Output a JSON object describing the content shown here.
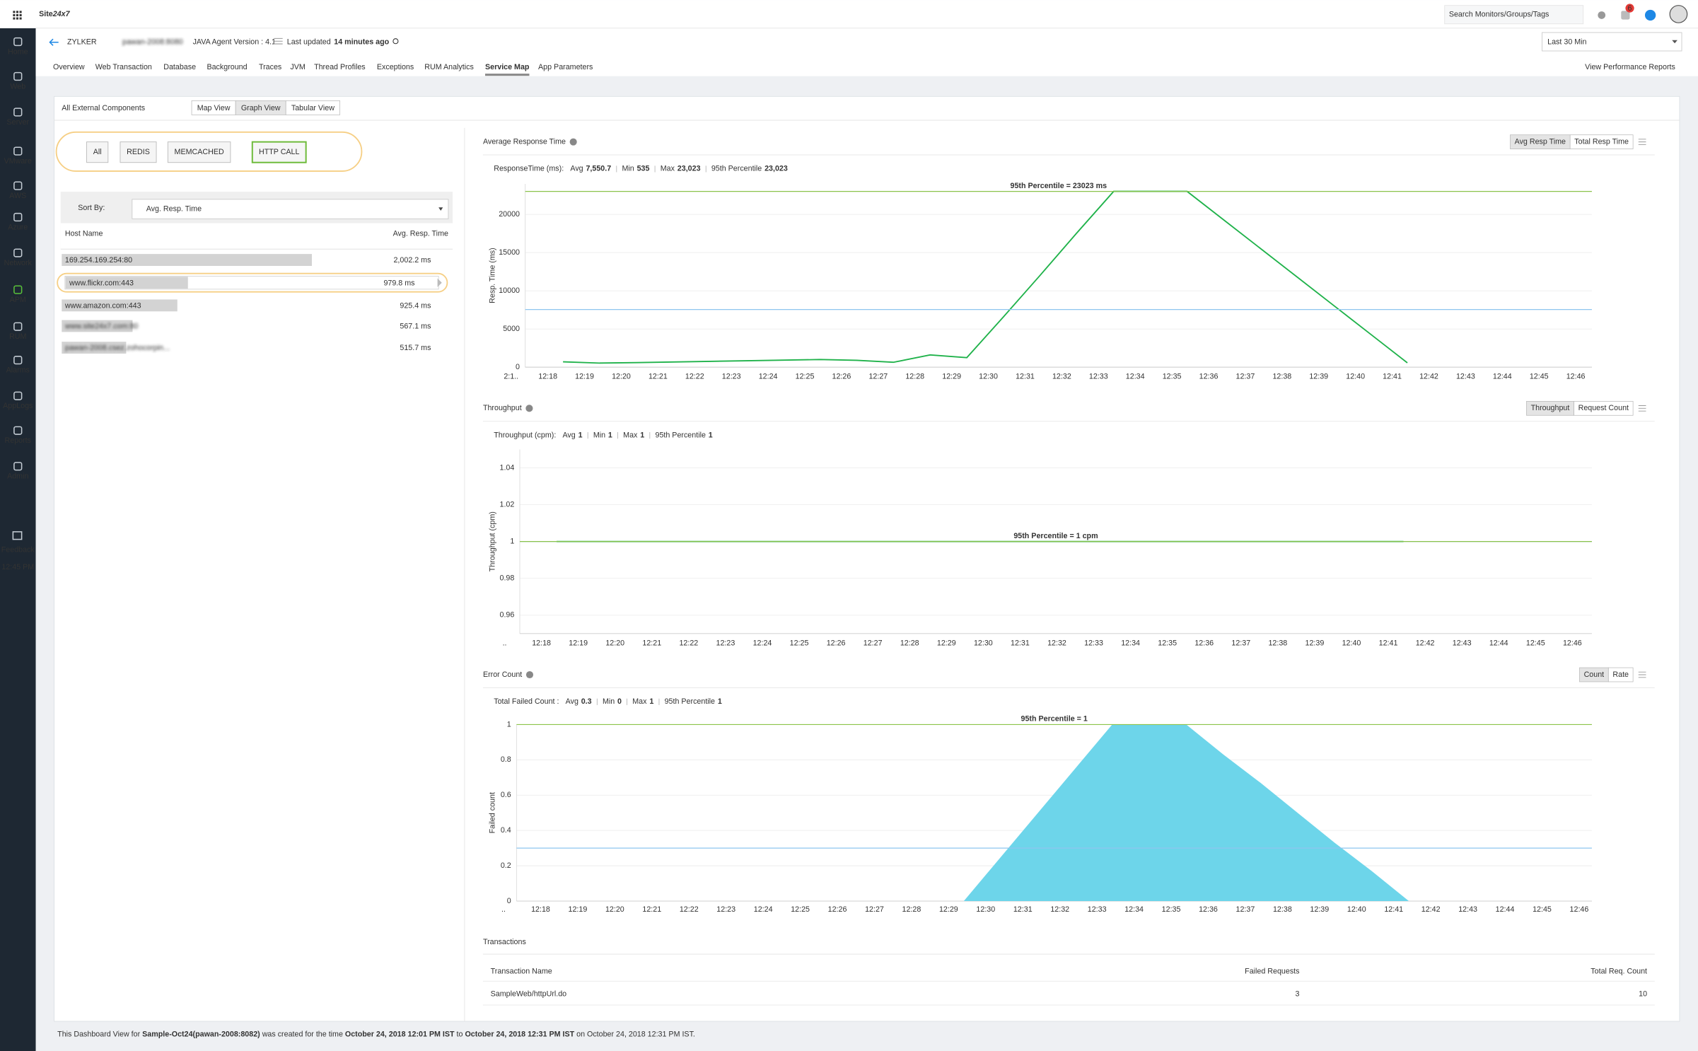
{
  "topbar": {
    "logo_a": "Site",
    "logo_b": "24x7",
    "search_placeholder": "Search Monitors/Groups/Tags",
    "alert_count": "6"
  },
  "sidebar": {
    "items": [
      "Home",
      "Web",
      "Server",
      "VMware",
      "AWS",
      "Azure",
      "Network",
      "APM",
      "RUM",
      "Alarms",
      "AppLogs",
      "Reports",
      "Admin"
    ],
    "active": 7,
    "feedback": "Feedback",
    "time": "12:45 PM"
  },
  "header": {
    "title": "ZYLKER",
    "host": "pawan-2008:8080",
    "agent": "JAVA Agent Version : 4.1",
    "last_updated_label": "Last updated",
    "last_updated": "14 minutes ago",
    "time_range": "Last 30 Min",
    "tabs": [
      "Overview",
      "Web Transaction",
      "Database",
      "Background",
      "Traces",
      "JVM",
      "Thread Profiles",
      "Exceptions",
      "RUM Analytics",
      "Service Map",
      "App Parameters"
    ],
    "active_tab": 9,
    "reports_link": "View Performance Reports"
  },
  "panel": {
    "title": "All External Components",
    "views": [
      "Map View",
      "Graph View",
      "Tabular View"
    ],
    "active_view": 1,
    "filters": [
      "All",
      "REDIS",
      "MEMCACHED",
      "HTTP CALL"
    ],
    "active_filter": 3,
    "sort_label": "Sort By:",
    "sort_value": "Avg. Resp. Time",
    "columns": [
      "Host Name",
      "Avg. Resp. Time"
    ],
    "selected_host": 1,
    "hosts": [
      {
        "name": "169.254.169.254:80",
        "value": {
          "value": 2002.2,
          "label": "2,002.2 ms"
        },
        "blurred": false
      },
      {
        "name": "www.flickr.com:443",
        "value": {
          "value": 979.8,
          "label": "979.8 ms"
        },
        "blurred": false
      },
      {
        "name": "www.amazon.com:443",
        "value": {
          "value": 925.4,
          "label": "925.4 ms"
        },
        "blurred": false
      },
      {
        "name": "www.site24x7.com:80",
        "value": {
          "value": 567.1,
          "label": "567.1 ms"
        },
        "blurred": true
      },
      {
        "name": "pawan-2008.csez.zohocorpin...",
        "value": {
          "value": 515.7,
          "label": "515.7 ms"
        },
        "blurred": true
      }
    ]
  },
  "charts": [
    {
      "type": "line",
      "title": "Average Response Time",
      "buttons": [
        "Avg Resp Time",
        "Total Resp Time"
      ],
      "stats_label": "ResponseTime (ms):",
      "stat_labels": [
        "Avg",
        "Min",
        "Max",
        "95th Percentile"
      ],
      "stat_values": [
        {
          "value": 7550.7,
          "label": "7,550.7"
        },
        535,
        {
          "value": 23023,
          "label": "23,023"
        },
        {
          "value": 23023,
          "label": "23,023"
        }
      ],
      "annotation": "95th Percentile = 23023 ms",
      "ylabel": "Resp. Time (ms)",
      "color": "#1fb24a",
      "ylim": [
        0,
        24000
      ],
      "yticks": [
        0,
        5000,
        10000,
        15000,
        20000
      ],
      "grid": true,
      "x": [
        "2:1..",
        "12:18",
        "12:19",
        "12:20",
        "12:21",
        "12:22",
        "12:23",
        "12:24",
        "12:25",
        "12:26",
        "12:27",
        "12:28",
        "12:29",
        "12:30",
        "12:31",
        "12:32",
        "12:33",
        "12:34",
        "12:35",
        "12:36",
        "12:37",
        "12:38",
        "12:39",
        "12:40",
        "12:41",
        "12:42",
        "12:43",
        "12:44",
        "12:45",
        "12:46"
      ],
      "values": [
        null,
        700,
        535,
        600,
        680,
        760,
        840,
        920,
        1000,
        900,
        640,
        1600,
        1250,
        6600,
        12050,
        17600,
        23023,
        23023,
        23023,
        19281,
        15539,
        11797,
        8054,
        4312,
        570,
        null,
        null,
        null,
        null,
        null
      ]
    },
    {
      "type": "line",
      "title": "Throughput",
      "buttons": [
        "Throughput",
        "Request Count"
      ],
      "stats_label": "Throughput (cpm):",
      "stat_labels": [
        "Avg",
        "Min",
        "Max",
        "95th Percentile"
      ],
      "stat_values": [
        1,
        1,
        1,
        1
      ],
      "annotation": "95th Percentile = 1 cpm",
      "ylabel": "Throughput (cpm)",
      "color": "#1fb24a",
      "ylim": [
        0.95,
        1.05
      ],
      "yticks": [
        0.96,
        0.98,
        1,
        1.02,
        1.04
      ],
      "grid": true,
      "x": [
        "..",
        "12:18",
        "12:19",
        "12:20",
        "12:21",
        "12:22",
        "12:23",
        "12:24",
        "12:25",
        "12:26",
        "12:27",
        "12:28",
        "12:29",
        "12:30",
        "12:31",
        "12:32",
        "12:33",
        "12:34",
        "12:35",
        "12:36",
        "12:37",
        "12:38",
        "12:39",
        "12:40",
        "12:41",
        "12:42",
        "12:43",
        "12:44",
        "12:45",
        "12:46"
      ],
      "values": [
        null,
        1,
        1,
        1,
        1,
        1,
        1,
        1,
        1,
        1,
        1,
        1,
        1,
        1,
        1,
        1,
        1,
        1,
        1,
        1,
        1,
        1,
        1,
        1,
        1,
        null,
        null,
        null,
        null,
        null
      ]
    },
    {
      "type": "area",
      "title": "Error Count",
      "buttons": [
        "Count",
        "Rate"
      ],
      "stats_label": "Total Failed Count :",
      "stat_labels": [
        "Avg",
        "Min",
        "Max",
        "95th Percentile"
      ],
      "stat_values": [
        0.3,
        0,
        1,
        1
      ],
      "annotation": "95th Percentile = 1",
      "ylabel": "Failed count",
      "color": "#6dd5ea",
      "ylim": [
        0,
        1
      ],
      "yticks": [
        0,
        0.2,
        0.4,
        0.6,
        0.8,
        1
      ],
      "grid": true,
      "x": [
        "..",
        "12:18",
        "12:19",
        "12:20",
        "12:21",
        "12:22",
        "12:23",
        "12:24",
        "12:25",
        "12:26",
        "12:27",
        "12:28",
        "12:29",
        "12:30",
        "12:31",
        "12:32",
        "12:33",
        "12:34",
        "12:35",
        "12:36",
        "12:37",
        "12:38",
        "12:39",
        "12:40",
        "12:41",
        "12:42",
        "12:43",
        "12:44",
        "12:45",
        "12:46"
      ],
      "values": [
        null,
        0,
        0,
        0,
        0,
        0,
        0,
        0,
        0,
        0,
        0,
        0,
        0,
        0.25,
        0.5,
        0.75,
        1,
        1,
        1,
        0.83,
        0.67,
        0.5,
        0.33,
        0.17,
        0,
        null,
        null,
        null,
        null,
        null
      ]
    }
  ],
  "transactions": {
    "title": "Transactions",
    "columns": [
      "Transaction Name",
      "Failed Requests",
      "Total Req. Count"
    ],
    "rows": [
      [
        "SampleWeb/httpUrl.do",
        "3",
        "10"
      ]
    ]
  },
  "footer": {
    "parts": [
      "This Dashboard View for ",
      "Sample-Oct24(pawan-2008:8082)",
      " was created for the time ",
      "October 24, 2018 12:01 PM IST",
      " to ",
      "October 24, 2018 12:31 PM IST",
      " on October 24, 2018 12:31 PM IST."
    ],
    "bold": [
      1,
      3,
      5
    ]
  }
}
